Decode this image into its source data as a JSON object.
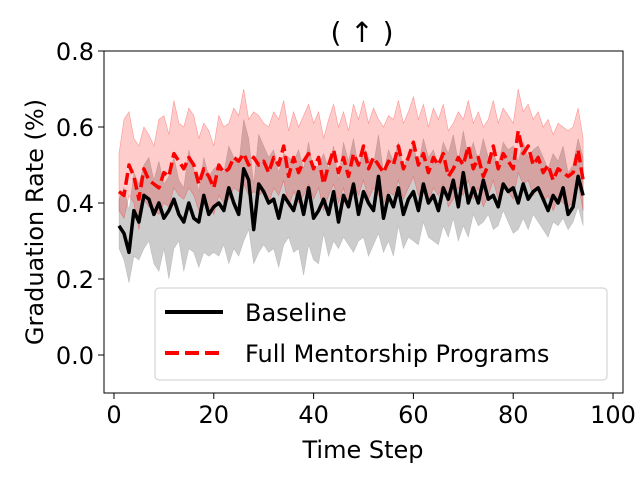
{
  "chart_data": {
    "type": "line",
    "title": "( ↑ )",
    "xlabel": "Time Step",
    "ylabel": "Graduation Rate (%)",
    "xlim": [
      -2,
      102
    ],
    "ylim": [
      -0.1,
      0.8
    ],
    "xticks": [
      0,
      20,
      40,
      60,
      80,
      100
    ],
    "yticks": [
      0.0,
      0.2,
      0.4,
      0.6,
      0.8
    ],
    "xtick_labels": [
      "0",
      "20",
      "40",
      "60",
      "80",
      "100"
    ],
    "ytick_labels": [
      "0.0",
      "0.2",
      "0.4",
      "0.6",
      "0.8"
    ],
    "grid": false,
    "legend_position": "lower-center",
    "x": [
      1,
      2,
      3,
      4,
      5,
      6,
      7,
      8,
      9,
      10,
      11,
      12,
      13,
      14,
      15,
      16,
      17,
      18,
      19,
      20,
      21,
      22,
      23,
      24,
      25,
      26,
      27,
      28,
      29,
      30,
      31,
      32,
      33,
      34,
      35,
      36,
      37,
      38,
      39,
      40,
      41,
      42,
      43,
      44,
      45,
      46,
      47,
      48,
      49,
      50,
      51,
      52,
      53,
      54,
      55,
      56,
      57,
      58,
      59,
      60,
      61,
      62,
      63,
      64,
      65,
      66,
      67,
      68,
      69,
      70,
      71,
      72,
      73,
      74,
      75,
      76,
      77,
      78,
      79,
      80,
      81,
      82,
      83,
      84,
      85,
      86,
      87,
      88,
      89,
      90,
      91,
      92,
      93,
      94
    ],
    "series": [
      {
        "name": "Baseline",
        "color": "#000000",
        "band_color": "#808080",
        "style": "solid",
        "values": [
          0.34,
          0.32,
          0.27,
          0.38,
          0.35,
          0.42,
          0.41,
          0.37,
          0.4,
          0.36,
          0.38,
          0.41,
          0.37,
          0.35,
          0.4,
          0.36,
          0.35,
          0.42,
          0.37,
          0.39,
          0.4,
          0.38,
          0.44,
          0.4,
          0.37,
          0.49,
          0.46,
          0.33,
          0.45,
          0.43,
          0.4,
          0.41,
          0.36,
          0.42,
          0.4,
          0.38,
          0.43,
          0.37,
          0.44,
          0.36,
          0.38,
          0.41,
          0.37,
          0.43,
          0.35,
          0.42,
          0.39,
          0.45,
          0.37,
          0.43,
          0.4,
          0.38,
          0.47,
          0.36,
          0.42,
          0.39,
          0.44,
          0.37,
          0.41,
          0.43,
          0.38,
          0.45,
          0.4,
          0.42,
          0.38,
          0.44,
          0.41,
          0.46,
          0.39,
          0.48,
          0.4,
          0.44,
          0.4,
          0.46,
          0.41,
          0.42,
          0.39,
          0.45,
          0.43,
          0.44,
          0.4,
          0.45,
          0.41,
          0.43,
          0.44,
          0.41,
          0.38,
          0.42,
          0.4,
          0.44,
          0.37,
          0.39,
          0.47,
          0.42
        ],
        "lower": [
          0.28,
          0.25,
          0.19,
          0.26,
          0.25,
          0.28,
          0.3,
          0.24,
          0.22,
          0.28,
          0.2,
          0.28,
          0.3,
          0.22,
          0.28,
          0.27,
          0.23,
          0.27,
          0.26,
          0.27,
          0.26,
          0.29,
          0.24,
          0.28,
          0.26,
          0.3,
          0.33,
          0.24,
          0.27,
          0.29,
          0.27,
          0.28,
          0.23,
          0.29,
          0.31,
          0.27,
          0.28,
          0.21,
          0.29,
          0.25,
          0.24,
          0.32,
          0.26,
          0.3,
          0.28,
          0.31,
          0.29,
          0.27,
          0.3,
          0.31,
          0.26,
          0.29,
          0.32,
          0.27,
          0.3,
          0.26,
          0.34,
          0.28,
          0.31,
          0.3,
          0.29,
          0.35,
          0.31,
          0.3,
          0.29,
          0.34,
          0.31,
          0.36,
          0.3,
          0.34,
          0.31,
          0.37,
          0.34,
          0.35,
          0.37,
          0.33,
          0.34,
          0.38,
          0.35,
          0.32,
          0.33,
          0.36,
          0.33,
          0.37,
          0.35,
          0.33,
          0.31,
          0.35,
          0.34,
          0.36,
          0.33,
          0.35,
          0.39,
          0.34
        ],
        "upper": [
          0.41,
          0.44,
          0.38,
          0.48,
          0.45,
          0.5,
          0.52,
          0.46,
          0.51,
          0.45,
          0.47,
          0.52,
          0.46,
          0.44,
          0.54,
          0.49,
          0.43,
          0.52,
          0.47,
          0.49,
          0.5,
          0.48,
          0.55,
          0.52,
          0.5,
          0.62,
          0.57,
          0.45,
          0.58,
          0.55,
          0.52,
          0.54,
          0.48,
          0.53,
          0.52,
          0.51,
          0.54,
          0.49,
          0.56,
          0.48,
          0.5,
          0.53,
          0.49,
          0.55,
          0.46,
          0.56,
          0.51,
          0.57,
          0.49,
          0.55,
          0.52,
          0.5,
          0.58,
          0.48,
          0.54,
          0.51,
          0.56,
          0.49,
          0.53,
          0.55,
          0.5,
          0.57,
          0.52,
          0.54,
          0.5,
          0.56,
          0.53,
          0.58,
          0.51,
          0.59,
          0.52,
          0.56,
          0.51,
          0.57,
          0.52,
          0.53,
          0.5,
          0.56,
          0.54,
          0.55,
          0.51,
          0.56,
          0.52,
          0.54,
          0.55,
          0.52,
          0.49,
          0.53,
          0.51,
          0.55,
          0.48,
          0.5,
          0.57,
          0.52
        ]
      },
      {
        "name": "Full Mentorship Programs",
        "color": "#ff0000",
        "band_color": "#ff0000",
        "style": "dashed",
        "values": [
          0.43,
          0.42,
          0.5,
          0.47,
          0.41,
          0.49,
          0.46,
          0.45,
          0.44,
          0.48,
          0.47,
          0.53,
          0.51,
          0.49,
          0.52,
          0.5,
          0.45,
          0.49,
          0.47,
          0.44,
          0.5,
          0.48,
          0.49,
          0.52,
          0.51,
          0.53,
          0.5,
          0.52,
          0.5,
          0.51,
          0.48,
          0.52,
          0.5,
          0.55,
          0.47,
          0.52,
          0.48,
          0.51,
          0.53,
          0.49,
          0.52,
          0.45,
          0.5,
          0.54,
          0.48,
          0.52,
          0.47,
          0.53,
          0.5,
          0.55,
          0.49,
          0.52,
          0.5,
          0.48,
          0.51,
          0.5,
          0.55,
          0.49,
          0.52,
          0.56,
          0.5,
          0.53,
          0.48,
          0.52,
          0.5,
          0.53,
          0.47,
          0.49,
          0.52,
          0.5,
          0.55,
          0.49,
          0.52,
          0.47,
          0.5,
          0.55,
          0.49,
          0.53,
          0.51,
          0.49,
          0.59,
          0.53,
          0.55,
          0.5,
          0.52,
          0.48,
          0.5,
          0.46,
          0.49,
          0.48,
          0.47,
          0.48,
          0.54,
          0.46
        ],
        "lower": [
          0.38,
          0.36,
          0.42,
          0.4,
          0.33,
          0.41,
          0.39,
          0.38,
          0.37,
          0.4,
          0.39,
          0.44,
          0.42,
          0.41,
          0.44,
          0.42,
          0.38,
          0.41,
          0.39,
          0.37,
          0.42,
          0.4,
          0.41,
          0.44,
          0.43,
          0.45,
          0.42,
          0.43,
          0.42,
          0.43,
          0.4,
          0.44,
          0.42,
          0.46,
          0.39,
          0.43,
          0.4,
          0.42,
          0.45,
          0.41,
          0.44,
          0.38,
          0.42,
          0.45,
          0.4,
          0.44,
          0.39,
          0.45,
          0.42,
          0.46,
          0.41,
          0.44,
          0.42,
          0.4,
          0.43,
          0.42,
          0.46,
          0.41,
          0.44,
          0.47,
          0.42,
          0.45,
          0.4,
          0.44,
          0.42,
          0.45,
          0.39,
          0.41,
          0.44,
          0.42,
          0.46,
          0.41,
          0.44,
          0.39,
          0.42,
          0.46,
          0.41,
          0.45,
          0.43,
          0.41,
          0.48,
          0.45,
          0.46,
          0.42,
          0.44,
          0.4,
          0.42,
          0.38,
          0.41,
          0.4,
          0.39,
          0.4,
          0.45,
          0.38
        ],
        "upper": [
          0.53,
          0.62,
          0.64,
          0.57,
          0.55,
          0.6,
          0.58,
          0.55,
          0.62,
          0.63,
          0.58,
          0.67,
          0.61,
          0.6,
          0.65,
          0.63,
          0.57,
          0.61,
          0.59,
          0.55,
          0.63,
          0.6,
          0.61,
          0.65,
          0.63,
          0.7,
          0.62,
          0.64,
          0.63,
          0.61,
          0.6,
          0.64,
          0.62,
          0.67,
          0.59,
          0.64,
          0.6,
          0.63,
          0.66,
          0.61,
          0.64,
          0.57,
          0.62,
          0.66,
          0.6,
          0.64,
          0.59,
          0.66,
          0.62,
          0.67,
          0.61,
          0.65,
          0.62,
          0.6,
          0.63,
          0.62,
          0.67,
          0.61,
          0.64,
          0.68,
          0.62,
          0.66,
          0.6,
          0.65,
          0.62,
          0.66,
          0.59,
          0.61,
          0.64,
          0.62,
          0.67,
          0.61,
          0.64,
          0.6,
          0.62,
          0.67,
          0.61,
          0.65,
          0.63,
          0.61,
          0.7,
          0.64,
          0.66,
          0.62,
          0.64,
          0.6,
          0.62,
          0.58,
          0.61,
          0.6,
          0.59,
          0.6,
          0.65,
          0.57
        ]
      }
    ]
  }
}
